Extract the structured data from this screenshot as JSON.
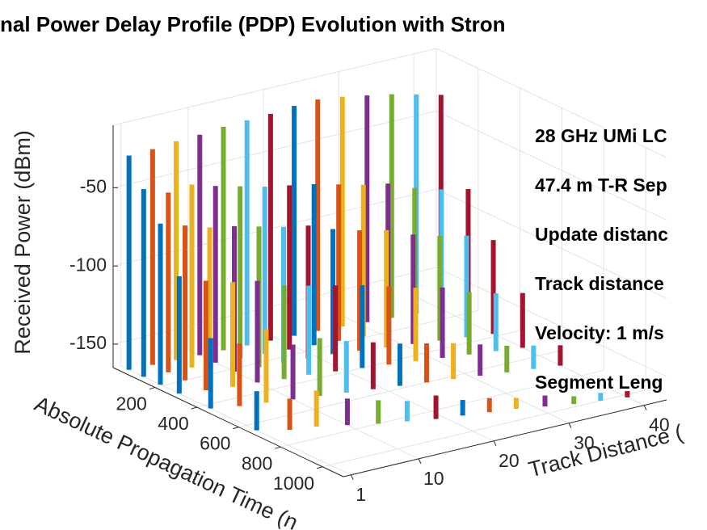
{
  "chart_data": {
    "type": "bar3",
    "title": "nal Power Delay Profile (PDP) Evolution with Stron",
    "xlabel": "Track Distance (",
    "ylabel": "Absolute Propagation Time (n",
    "zlabel": "Received Power (dBm)",
    "annotations": [
      "28 GHz UMi LC",
      "47.4 m T-R Sep",
      "Update distanc",
      "Track distance",
      "Velocity: 1 m/s",
      "Segment Leng"
    ],
    "xlim": [
      0,
      43
    ],
    "xticks": [
      1,
      10,
      20,
      30,
      40
    ],
    "ylim": [
      0,
      1100
    ],
    "yticks": [
      200,
      400,
      600,
      800,
      1000
    ],
    "zlim": [
      -165,
      -10
    ],
    "zticks": [
      -150,
      -100,
      -50
    ],
    "grid": true,
    "colors": [
      "#0072BD",
      "#D95319",
      "#EDB120",
      "#7E2F8E",
      "#77AC30",
      "#4DBEEE",
      "#A2142F"
    ],
    "tracks": [
      {
        "x": 1,
        "delays": [
          40,
          110,
          190,
          280,
          430,
          650
        ],
        "values": [
          -28,
          -45,
          -62,
          -90,
          -120,
          -140
        ]
      },
      {
        "x": 4,
        "delays": [
          45,
          120,
          200,
          300,
          460,
          700
        ],
        "values": [
          -27,
          -50,
          -66,
          -95,
          -125,
          -145
        ]
      },
      {
        "x": 7,
        "delays": [
          50,
          125,
          210,
          320,
          480,
          720
        ],
        "values": [
          -25,
          -48,
          -70,
          -98,
          -118,
          -142
        ]
      },
      {
        "x": 10,
        "delays": [
          55,
          130,
          220,
          330,
          500,
          760
        ],
        "values": [
          -24,
          -52,
          -72,
          -100,
          -130,
          -148
        ]
      },
      {
        "x": 13,
        "delays": [
          60,
          140,
          230,
          350,
          520,
          800
        ],
        "values": [
          -22,
          -55,
          -75,
          -105,
          -128,
          -150
        ]
      },
      {
        "x": 16,
        "delays": [
          65,
          150,
          240,
          360,
          540,
          830
        ],
        "values": [
          -21,
          -58,
          -78,
          -108,
          -132,
          -152
        ]
      },
      {
        "x": 19,
        "delays": [
          70,
          160,
          250,
          380,
          560,
          860
        ],
        "values": [
          -20,
          -60,
          -80,
          -110,
          -135,
          -150
        ]
      },
      {
        "x": 22,
        "delays": [
          75,
          170,
          260,
          400,
          580,
          880
        ],
        "values": [
          -18,
          -62,
          -85,
          -112,
          -138,
          -155
        ]
      },
      {
        "x": 25,
        "delays": [
          80,
          180,
          280,
          420,
          600,
          900
        ],
        "values": [
          -17,
          -65,
          -88,
          -115,
          -140,
          -156
        ]
      },
      {
        "x": 28,
        "delays": [
          90,
          190,
          300,
          440,
          620,
          920
        ],
        "values": [
          -18,
          -68,
          -90,
          -118,
          -142,
          -158
        ]
      },
      {
        "x": 31,
        "delays": [
          100,
          200,
          320,
          460,
          640,
          950
        ],
        "values": [
          -20,
          -70,
          -95,
          -120,
          -145,
          -158
        ]
      },
      {
        "x": 34,
        "delays": [
          110,
          220,
          340,
          480,
          660,
          980
        ],
        "values": [
          -22,
          -75,
          -98,
          -125,
          -148,
          -160
        ]
      },
      {
        "x": 37,
        "delays": [
          120,
          240,
          360,
          500,
          680,
          1000
        ],
        "values": [
          -25,
          -78,
          -100,
          -128,
          -150,
          -160
        ]
      },
      {
        "x": 40,
        "delays": [
          130,
          260,
          380,
          520,
          700,
          1020
        ],
        "values": [
          -28,
          -80,
          -105,
          -130,
          -152,
          -161
        ]
      }
    ]
  }
}
